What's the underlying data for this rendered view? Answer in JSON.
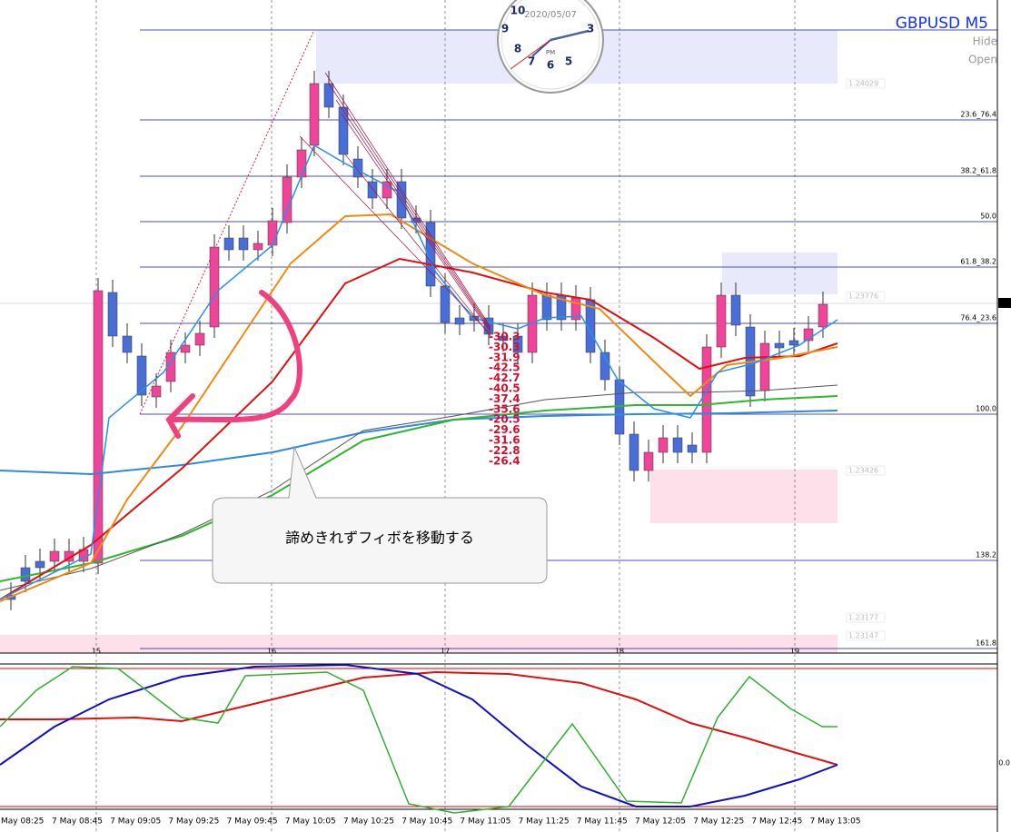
{
  "header": {
    "symbol": "GBPUSD M5",
    "buttons": [
      "Hide",
      "Open"
    ]
  },
  "clock": {
    "date": "2020/05/07",
    "period": "PM",
    "digits": [
      "10",
      "9",
      "8",
      "7",
      "6",
      "5",
      "3"
    ]
  },
  "fib_levels": [
    "23.6_76.4",
    "38.2_61.8",
    "50.0",
    "61.8_38.2",
    "76.4_23.6",
    "100.0",
    "138.2",
    "161.8"
  ],
  "price_boxes": [
    "1.24029",
    "1.23776",
    "1.23426",
    "1.23177",
    "1.23147"
  ],
  "readings": [
    "-30.3",
    "-30.3",
    "-31.9",
    "-42.5",
    "-42.7",
    "-40.5",
    "-37.4",
    "-35.6",
    "-20.5",
    "-29.6",
    "-31.6",
    "-22.8",
    "-26.4"
  ],
  "day_markers": [
    "15",
    "16",
    "17",
    "18",
    "19"
  ],
  "indicator_label": "0.0",
  "time_axis": [
    "May 08:25",
    "7 May 08:45",
    "7 May 09:05",
    "7 May 09:25",
    "7 May 09:45",
    "7 May 10:05",
    "7 May 10:25",
    "7 May 10:45",
    "7 May 11:05",
    "7 May 11:25",
    "7 May 11:45",
    "7 May 12:05",
    "7 May 12:25",
    "7 May 12:45",
    "7 May 13:05"
  ],
  "callout": "諦めきれずフィボを移動する"
}
